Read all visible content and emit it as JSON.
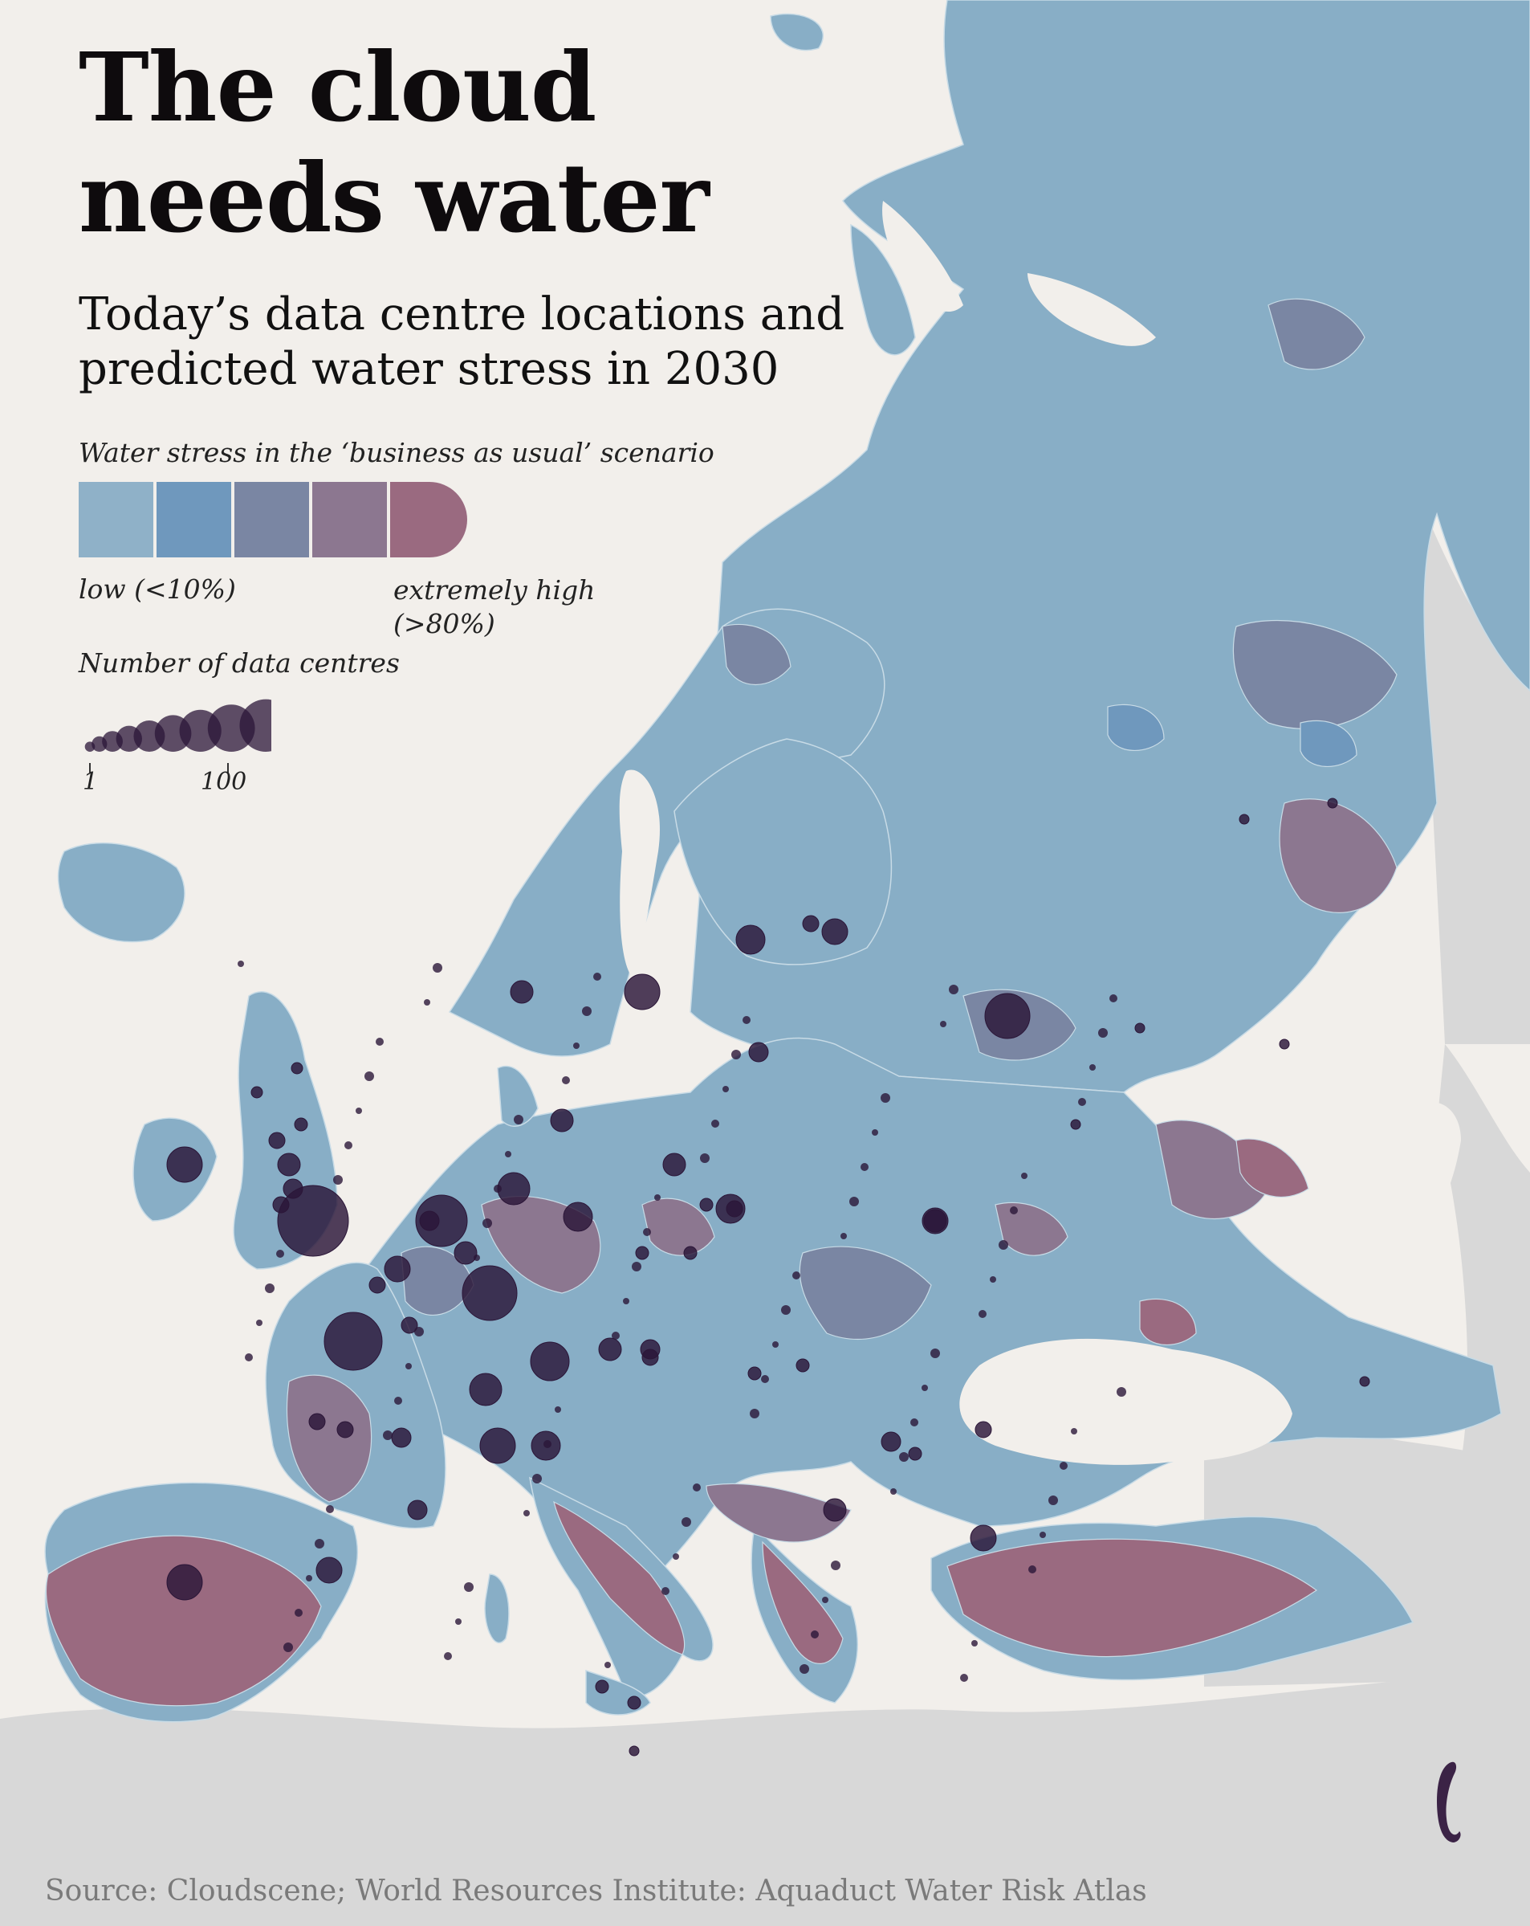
{
  "header": {
    "title": "The cloud needs water",
    "subtitle": "Today’s data centre locations and predicted water stress in 2030"
  },
  "legend": {
    "stress_title": "Water stress in the ‘business as usual’ scenario",
    "stress_colors": [
      "#8fb1c8",
      "#6f98bd",
      "#7a86a3",
      "#8c7790",
      "#9a6a80"
    ],
    "low_label": "low (<10%)",
    "high_label": "extremely high (>80%)",
    "dc_title": "Number of data centres",
    "dc_min_label": "1",
    "dc_max_label": "100",
    "dc_min": 1,
    "dc_max": 100
  },
  "map": {
    "land_color": "#88aec6",
    "sea_color": "#f2efeb",
    "outside_color": "#d7d7d7",
    "bubble_color": "#2b1638"
  },
  "source": "Source: Cloudscene; World Resources Institute: Aquaduct Water Risk Atlas",
  "logo": {
    "icon": "publisher-logo-icon",
    "color": "#3b2346"
  }
}
